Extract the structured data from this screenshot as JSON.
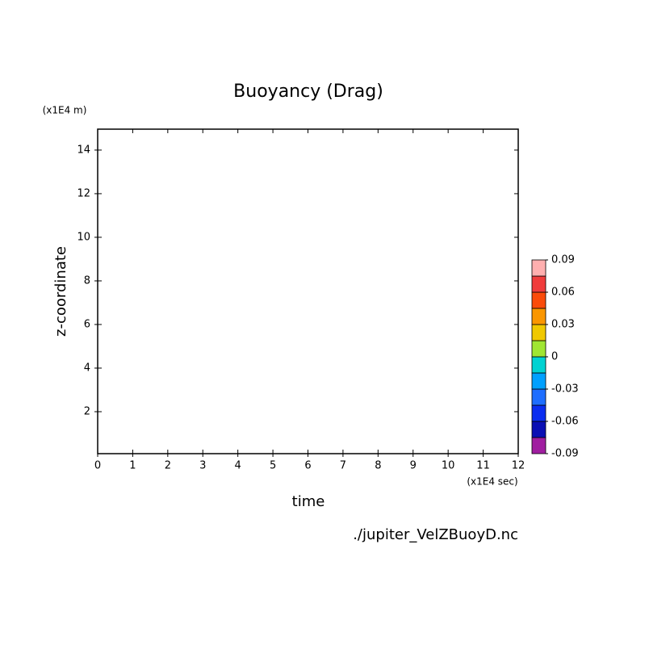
{
  "chart_data": {
    "type": "contour",
    "title": "Buoyancy (Drag)",
    "x_label": "time",
    "y_label": "z-coordinate",
    "x_unit": "(x1E4 sec)",
    "y_unit": "(x1E4 m)",
    "source": "./jupiter_VelZBuoyD.nc",
    "xlim": [
      0,
      12
    ],
    "xticks": [
      0,
      1,
      2,
      3,
      4,
      5,
      6,
      7,
      8,
      9,
      10,
      11,
      12
    ],
    "ylim": [
      0.075,
      14.96
    ],
    "yticks": [
      2,
      4,
      6,
      8,
      10,
      12,
      14
    ],
    "colorbar": {
      "levels": [
        -0.09,
        -0.075,
        -0.06,
        -0.045,
        -0.03,
        -0.015,
        0,
        0.015,
        0.03,
        0.045,
        0.06,
        0.075,
        0.09
      ],
      "colors": [
        "#a01ea0",
        "#0a0fb4",
        "#0a2df0",
        "#1e6eff",
        "#00a0ff",
        "#00d2d2",
        "#a0e632",
        "#f0c800",
        "#fa9600",
        "#fa4b0a",
        "#f03c3c",
        "#ffafaf"
      ],
      "ticks": [
        0.09,
        0.06,
        0.03,
        0,
        -0.03,
        -0.06,
        -0.09
      ]
    }
  }
}
